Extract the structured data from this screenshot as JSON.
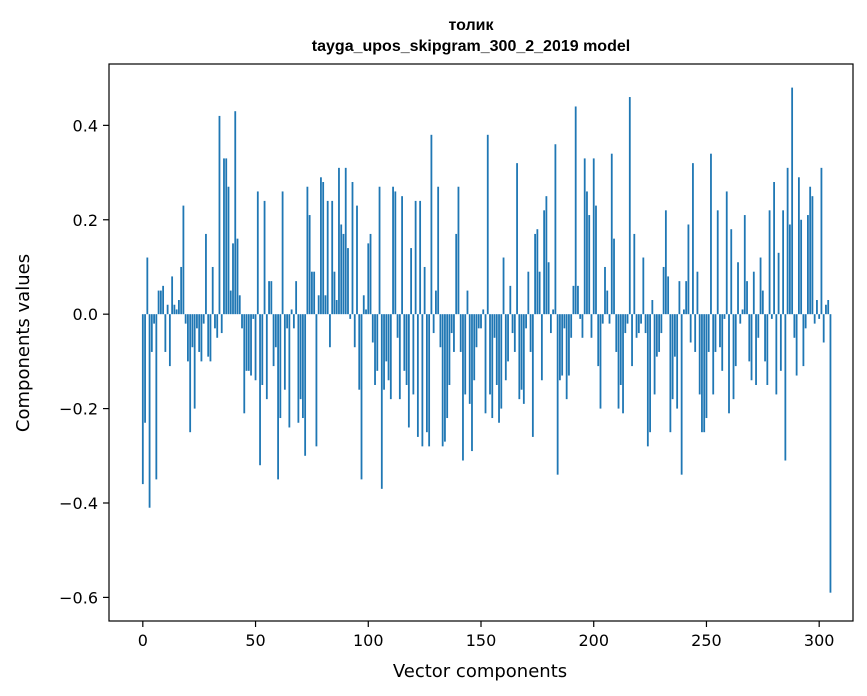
{
  "chart_data": {
    "type": "bar",
    "title": "толик",
    "subtitle": "tayga_upos_skipgram_300_2_2019 model",
    "xlabel": "Vector components",
    "ylabel": "Components values",
    "xlim": [
      -15,
      315
    ],
    "ylim": [
      -0.65,
      0.53
    ],
    "xticks": [
      0,
      50,
      100,
      150,
      200,
      250,
      300
    ],
    "xtick_labels": [
      "0",
      "50",
      "100",
      "150",
      "200",
      "250",
      "300"
    ],
    "yticks": [
      -0.6,
      -0.4,
      -0.2,
      0.0,
      0.2,
      0.4
    ],
    "ytick_labels": [
      "−0.6",
      "−0.4",
      "−0.2",
      "0.0",
      "0.2",
      "0.4"
    ],
    "bar_color": "#1f77b4",
    "grid": false,
    "values": [
      -0.36,
      -0.23,
      0.12,
      -0.41,
      -0.08,
      -0.02,
      -0.35,
      0.05,
      0.05,
      0.06,
      -0.08,
      0.02,
      -0.11,
      0.08,
      0.02,
      0.01,
      0.03,
      0.1,
      0.23,
      -0.02,
      -0.1,
      -0.25,
      -0.07,
      -0.2,
      -0.03,
      -0.08,
      -0.1,
      -0.02,
      0.17,
      -0.09,
      -0.1,
      0.1,
      -0.03,
      -0.05,
      0.42,
      -0.04,
      0.33,
      0.33,
      0.27,
      0.05,
      0.15,
      0.43,
      0.16,
      0.04,
      -0.03,
      -0.21,
      -0.12,
      -0.12,
      -0.13,
      -0.01,
      -0.14,
      0.26,
      -0.32,
      -0.15,
      0.24,
      -0.18,
      0.07,
      0.07,
      -0.11,
      -0.07,
      -0.35,
      -0.22,
      0.26,
      -0.16,
      -0.03,
      -0.24,
      0.01,
      -0.03,
      0.07,
      -0.23,
      -0.18,
      -0.22,
      -0.3,
      0.27,
      0.21,
      0.09,
      0.09,
      -0.28,
      0.04,
      0.29,
      0.28,
      0.04,
      0.24,
      -0.07,
      0.24,
      0.09,
      0.03,
      0.31,
      0.19,
      0.17,
      0.31,
      0.14,
      -0.01,
      0.28,
      -0.07,
      0.23,
      -0.16,
      -0.35,
      0.04,
      0.01,
      0.15,
      0.17,
      -0.06,
      -0.15,
      -0.12,
      0.27,
      -0.37,
      -0.16,
      -0.1,
      -0.14,
      -0.18,
      0.27,
      0.26,
      -0.05,
      -0.18,
      0.25,
      -0.12,
      -0.15,
      -0.24,
      0.14,
      -0.17,
      0.24,
      -0.26,
      0.24,
      -0.28,
      0.1,
      -0.25,
      -0.28,
      0.38,
      -0.04,
      0.05,
      0.27,
      -0.07,
      -0.28,
      -0.27,
      -0.22,
      -0.15,
      -0.04,
      -0.08,
      0.17,
      0.27,
      -0.08,
      -0.31,
      -0.17,
      0.05,
      -0.19,
      -0.29,
      -0.14,
      -0.07,
      -0.03,
      -0.03,
      0.01,
      -0.21,
      0.38,
      -0.17,
      -0.22,
      -0.05,
      -0.15,
      -0.23,
      -0.2,
      0.12,
      -0.14,
      -0.1,
      0.06,
      -0.04,
      -0.08,
      0.32,
      -0.18,
      -0.16,
      -0.19,
      -0.03,
      0.09,
      -0.08,
      -0.26,
      0.17,
      0.18,
      0.09,
      -0.14,
      0.22,
      0.25,
      0.11,
      -0.04,
      0.01,
      0.36,
      -0.34,
      -0.14,
      -0.13,
      -0.03,
      -0.18,
      -0.13,
      -0.05,
      0.06,
      0.44,
      0.06,
      -0.01,
      -0.05,
      0.33,
      0.26,
      0.21,
      -0.05,
      0.33,
      0.23,
      -0.11,
      -0.2,
      -0.02,
      0.1,
      0.05,
      -0.02,
      0.34,
      0.16,
      -0.08,
      -0.2,
      -0.15,
      -0.21,
      -0.04,
      -0.02,
      0.46,
      -0.11,
      0.17,
      -0.05,
      -0.04,
      -0.02,
      0.12,
      -0.04,
      -0.28,
      -0.25,
      0.03,
      -0.17,
      -0.09,
      -0.08,
      -0.04,
      0.1,
      0.22,
      0.08,
      -0.25,
      -0.18,
      -0.09,
      -0.2,
      0.07,
      -0.34,
      0.01,
      0.07,
      0.19,
      -0.06,
      0.32,
      -0.08,
      0.09,
      -0.17,
      -0.25,
      -0.25,
      -0.22,
      -0.08,
      0.34,
      -0.17,
      -0.08,
      0.22,
      -0.07,
      -0.12,
      -0.01,
      0.26,
      -0.21,
      0.18,
      -0.18,
      -0.11,
      0.11,
      -0.02,
      0.01,
      0.21,
      0.07,
      -0.1,
      -0.14,
      0.09,
      -0.15,
      -0.05,
      0.12,
      0.05,
      -0.1,
      -0.15,
      0.22,
      -0.01,
      0.28,
      -0.17,
      0.13,
      -0.12,
      0.22,
      -0.31,
      0.31,
      0.19,
      0.48,
      -0.05,
      -0.13,
      0.29,
      0.2,
      -0.11,
      -0.03,
      0.21,
      0.27,
      0.25,
      -0.02,
      0.03,
      -0.01,
      0.31,
      -0.06,
      0.02,
      0.03,
      -0.59
    ]
  }
}
